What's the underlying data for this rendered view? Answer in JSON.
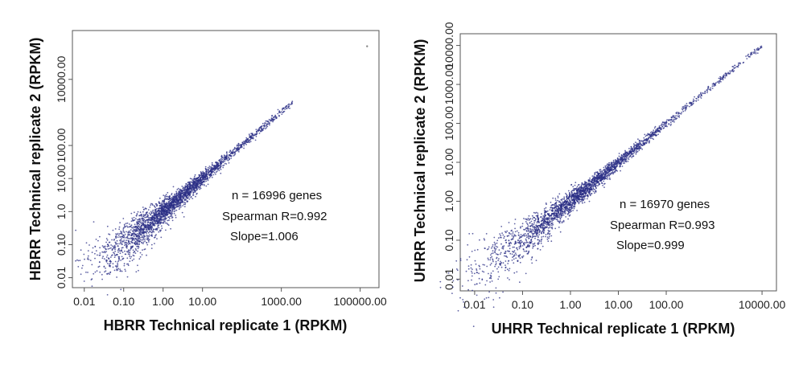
{
  "chart_data": [
    {
      "type": "scatter",
      "x_scale": "log10",
      "y_scale": "log10",
      "xlabel": "HBRR Technical replicate 1 (RPKM)",
      "ylabel": "HBRR Technical replicate 2 (RPKM)",
      "xlim": [
        0.005,
        300000
      ],
      "ylim": [
        0.005,
        300000
      ],
      "x_ticks": [
        "0.01",
        "0.10",
        "1.00",
        "10.00",
        "1000.00",
        "100000.00"
      ],
      "y_ticks": [
        "0.01",
        "0.10",
        "1.0",
        "10.00",
        "100.00",
        "10000.00"
      ],
      "annotations": [
        "n = 16996 genes",
        "Spearman R=0.992",
        "Slope=1.006"
      ],
      "points": {
        "count": 16996,
        "spearman_r": 0.992,
        "slope": 1.006,
        "x_range": [
          0.03,
          2000
        ],
        "outliers": [
          [
            150000,
            100000
          ]
        ]
      },
      "color": "#2b2f86"
    },
    {
      "type": "scatter",
      "x_scale": "log10",
      "y_scale": "log10",
      "xlabel": "UHRR Technical replicate 1 (RPKM)",
      "ylabel": "UHRR Technical replicate 2 (RPKM)",
      "xlim": [
        0.005,
        20000
      ],
      "ylim": [
        0.005,
        20000
      ],
      "x_ticks": [
        "0.01",
        "0.10",
        "1.00",
        "10.00",
        "100.00",
        "10000.00"
      ],
      "y_ticks": [
        "0.01",
        "0.10",
        "1.00",
        "10.00",
        "100.00",
        "1000.00",
        "10000.00"
      ],
      "annotations": [
        "n = 16970 genes",
        "Spearman R=0.993",
        "Slope=0.999"
      ],
      "points": {
        "count": 16970,
        "spearman_r": 0.993,
        "slope": 0.999,
        "x_range": [
          0.01,
          10000
        ],
        "outliers": []
      },
      "color": "#2b2f86"
    }
  ]
}
